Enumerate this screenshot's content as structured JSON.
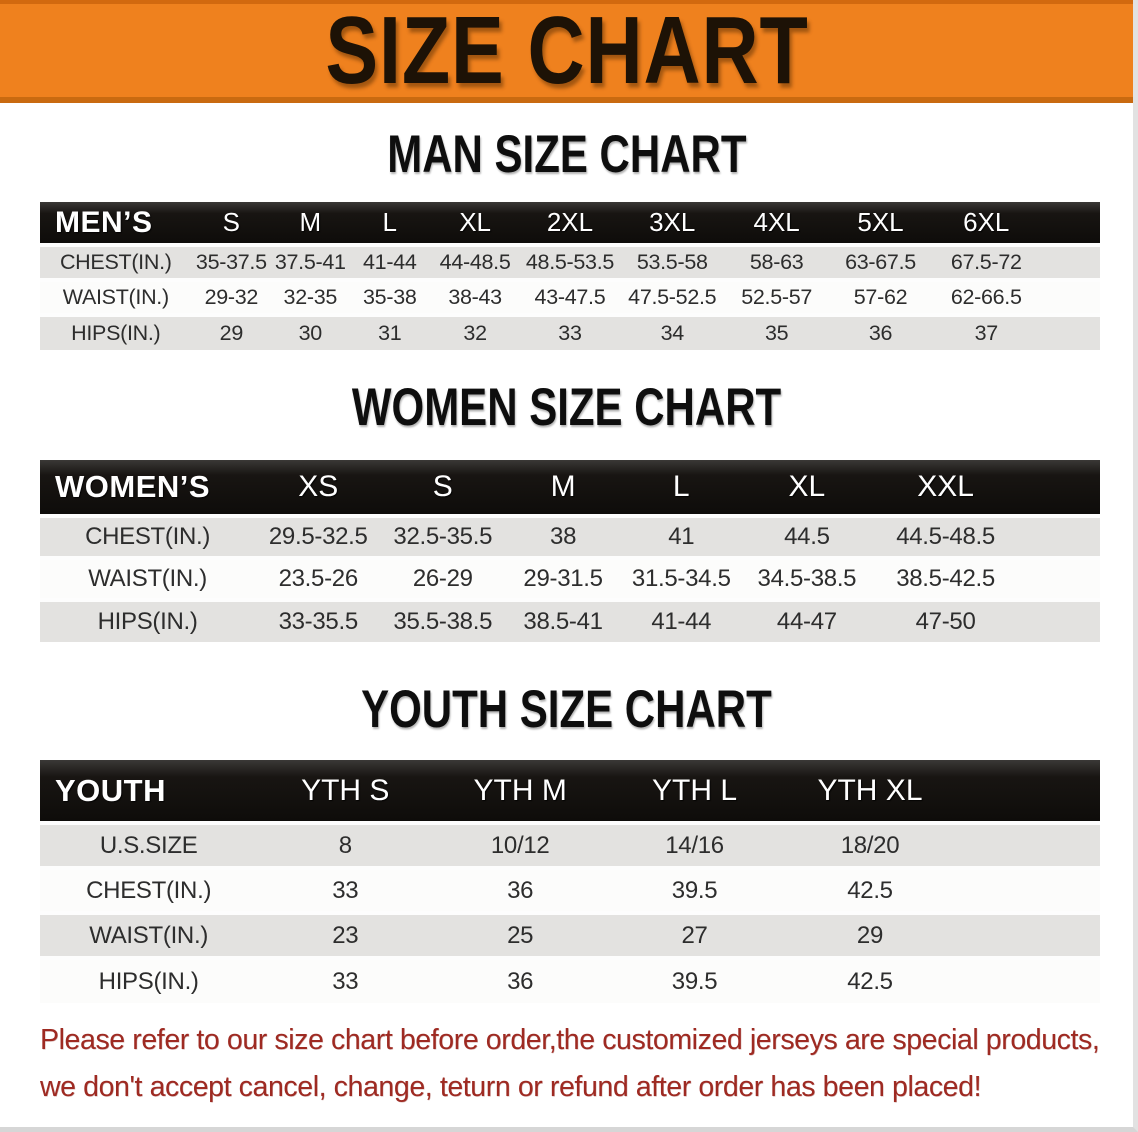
{
  "banner": {
    "title": "SIZE CHART",
    "bg_color": "#ef811e",
    "text_color": "#1d1206"
  },
  "colors": {
    "table_header_bg": "#141210",
    "row_stripe_gray": "#e3e2e0",
    "row_stripe_white": "#fcfcfb",
    "disclaimer_red": "#9e2a22"
  },
  "sections": [
    {
      "id": "men",
      "title": "MAN SIZE CHART",
      "table": {
        "label": "MEN’S",
        "columns": [
          "S",
          "M",
          "L",
          "XL",
          "2XL",
          "3XL",
          "4XL",
          "5XL",
          "6XL"
        ],
        "rows": [
          {
            "label": "CHEST(IN.)",
            "values": [
              "35-37.5",
              "37.5-41",
              "41-44",
              "44-48.5",
              "48.5-53.5",
              "53.5-58",
              "58-63",
              "63-67.5",
              "67.5-72"
            ]
          },
          {
            "label": "WAIST(IN.)",
            "values": [
              "29-32",
              "32-35",
              "35-38",
              "38-43",
              "43-47.5",
              "47.5-52.5",
              "52.5-57",
              "57-62",
              "62-66.5"
            ]
          },
          {
            "label": "HIPS(IN.)",
            "values": [
              "29",
              "30",
              "31",
              "32",
              "33",
              "34",
              "35",
              "36",
              "37"
            ]
          }
        ]
      }
    },
    {
      "id": "women",
      "title": "WOMEN SIZE CHART",
      "table": {
        "label": "WOMEN’S",
        "columns": [
          "XS",
          "S",
          "M",
          "L",
          "XL",
          "XXL"
        ],
        "rows": [
          {
            "label": "CHEST(IN.)",
            "values": [
              "29.5-32.5",
              "32.5-35.5",
              "38",
              "41",
              "44.5",
              "44.5-48.5"
            ]
          },
          {
            "label": "WAIST(IN.)",
            "values": [
              "23.5-26",
              "26-29",
              "29-31.5",
              "31.5-34.5",
              "34.5-38.5",
              "38.5-42.5"
            ]
          },
          {
            "label": "HIPS(IN.)",
            "values": [
              "33-35.5",
              "35.5-38.5",
              "38.5-41",
              "41-44",
              "44-47",
              "47-50"
            ]
          }
        ]
      }
    },
    {
      "id": "youth",
      "title": "YOUTH SIZE CHART",
      "table": {
        "label": "YOUTH",
        "columns": [
          "YTH S",
          "YTH M",
          "YTH L",
          "YTH XL"
        ],
        "rows": [
          {
            "label": "U.S.SIZE",
            "values": [
              "8",
              "10/12",
              "14/16",
              "18/20"
            ]
          },
          {
            "label": "CHEST(IN.)",
            "values": [
              "33",
              "36",
              "39.5",
              "42.5"
            ]
          },
          {
            "label": "WAIST(IN.)",
            "values": [
              "23",
              "25",
              "27",
              "29"
            ]
          },
          {
            "label": "HIPS(IN.)",
            "values": [
              "33",
              "36",
              "39.5",
              "42.5"
            ]
          }
        ]
      }
    }
  ],
  "disclaimer": {
    "line1": "Please refer to our size chart before order,the customized jerseys are special products,",
    "line2": "we don't accept cancel, change, teturn or refund after order has been placed!"
  }
}
